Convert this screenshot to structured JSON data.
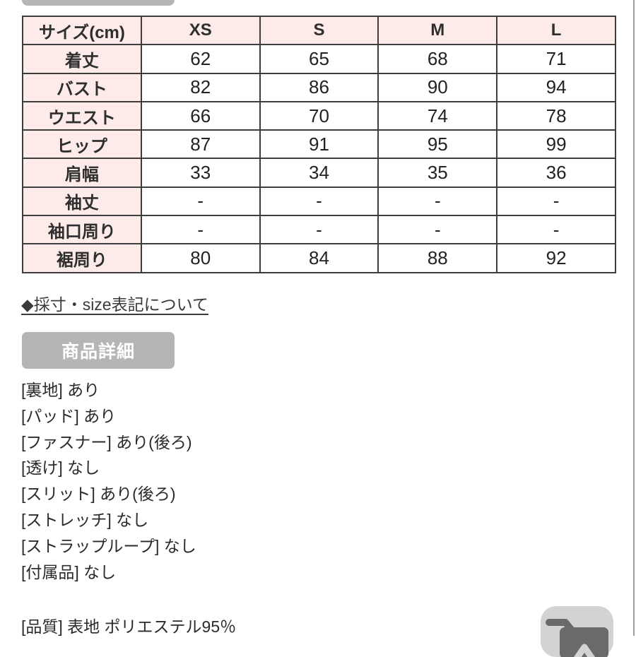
{
  "colors": {
    "table_header_pink": "#fcebe8",
    "table_border": "#3d3d3d",
    "section_button_gray": "#b5b5b5",
    "cart_button_gray": "#d3d3d3",
    "cart_icon_gray": "#6a6a6a"
  },
  "size_table": {
    "unit_header": "サイズ(cm)",
    "columns": [
      "XS",
      "S",
      "M",
      "L"
    ],
    "rows": [
      {
        "label": "着丈",
        "values": [
          "62",
          "65",
          "68",
          "71"
        ]
      },
      {
        "label": "バスト",
        "values": [
          "82",
          "86",
          "90",
          "94"
        ]
      },
      {
        "label": "ウエスト",
        "values": [
          "66",
          "70",
          "74",
          "78"
        ]
      },
      {
        "label": "ヒップ",
        "values": [
          "87",
          "91",
          "95",
          "99"
        ]
      },
      {
        "label": "肩幅",
        "values": [
          "33",
          "34",
          "35",
          "36"
        ]
      },
      {
        "label": "袖丈",
        "values": [
          "-",
          "-",
          "-",
          "-"
        ]
      },
      {
        "label": "袖口周り",
        "values": [
          "-",
          "-",
          "-",
          "-"
        ]
      },
      {
        "label": "裾周り",
        "values": [
          "80",
          "84",
          "88",
          "92"
        ]
      }
    ]
  },
  "size_note_link": {
    "label": "◆採寸・size表記について"
  },
  "details_section": {
    "title": "商品詳細",
    "items": [
      "[裏地] あり",
      "[パッド] あり",
      "[ファスナー] あり(後ろ)",
      "[透け] なし",
      "[スリット] あり(後ろ)",
      "[ストレッチ] なし",
      "[ストラップループ] なし",
      "[付属品] なし"
    ],
    "quality_line": "[品質] 表地 ポリエステル95％"
  },
  "cart_button": {
    "icon": "add-to-cart-icon"
  }
}
